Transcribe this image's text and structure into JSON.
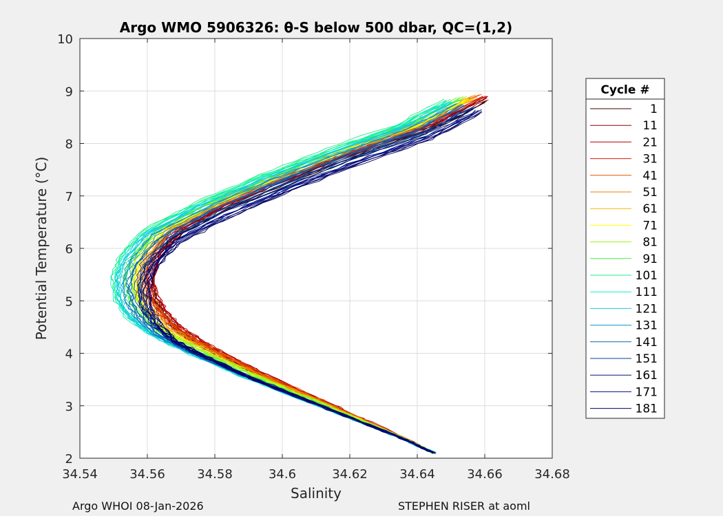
{
  "chart_data": {
    "type": "line",
    "title": "Argo WMO 5906326: θ-S below 500 dbar,  QC=(1,2)",
    "xlabel": "Salinity",
    "ylabel": "Potential Temperature (°C)",
    "xlim": [
      34.54,
      34.68
    ],
    "ylim": [
      2,
      10
    ],
    "xticks": [
      34.54,
      34.56,
      34.58,
      34.6,
      34.62,
      34.64,
      34.66,
      34.68
    ],
    "xtick_labels": [
      "34.54",
      "34.56",
      "34.58",
      "34.6",
      "34.62",
      "34.64",
      "34.66",
      "34.68"
    ],
    "yticks": [
      2,
      3,
      4,
      5,
      6,
      7,
      8,
      9,
      10
    ],
    "ytick_labels": [
      "2",
      "3",
      "4",
      "5",
      "6",
      "7",
      "8",
      "9",
      "10"
    ],
    "grid": true,
    "legend": {
      "title": "Cycle #",
      "position": "outside-right",
      "entries": [
        {
          "label": "1",
          "color": "#3a0000"
        },
        {
          "label": "11",
          "color": "#8b0000"
        },
        {
          "label": "21",
          "color": "#b40000"
        },
        {
          "label": "31",
          "color": "#d21e00"
        },
        {
          "label": "41",
          "color": "#e65000"
        },
        {
          "label": "51",
          "color": "#f08200"
        },
        {
          "label": "61",
          "color": "#f5b400"
        },
        {
          "label": "71",
          "color": "#ffff00"
        },
        {
          "label": "81",
          "color": "#a0f020"
        },
        {
          "label": "91",
          "color": "#46f03c"
        },
        {
          "label": "101",
          "color": "#14f08c"
        },
        {
          "label": "111",
          "color": "#14ecc8"
        },
        {
          "label": "121",
          "color": "#14c8e6"
        },
        {
          "label": "131",
          "color": "#0a96c8"
        },
        {
          "label": "141",
          "color": "#0a64b4"
        },
        {
          "label": "151",
          "color": "#0a3c96"
        },
        {
          "label": "161",
          "color": "#00196e"
        },
        {
          "label": "171",
          "color": "#000a82"
        },
        {
          "label": "181",
          "color": "#000064"
        }
      ]
    },
    "profile_shape": {
      "x": [
        34.645,
        34.635,
        34.62,
        34.605,
        34.59,
        34.58,
        34.572,
        34.565,
        34.56,
        34.557,
        34.556,
        34.558,
        34.565,
        34.58,
        34.6,
        34.62,
        34.64,
        34.655
      ],
      "y": [
        2.1,
        2.4,
        2.8,
        3.2,
        3.6,
        3.9,
        4.15,
        4.4,
        4.7,
        5.0,
        5.4,
        5.8,
        6.3,
        6.8,
        7.35,
        7.85,
        8.3,
        8.8
      ]
    },
    "series_offsets": [
      {
        "cycle": "1",
        "dx": 0.0045,
        "dy": 0.0
      },
      {
        "cycle": "11",
        "dx": 0.005,
        "dy": 0.05
      },
      {
        "cycle": "21",
        "dx": 0.0052,
        "dy": 0.1
      },
      {
        "cycle": "31",
        "dx": 0.004,
        "dy": 0.08
      },
      {
        "cycle": "41",
        "dx": 0.003,
        "dy": 0.12
      },
      {
        "cycle": "51",
        "dx": 0.002,
        "dy": 0.1
      },
      {
        "cycle": "61",
        "dx": 0.001,
        "dy": 0.06
      },
      {
        "cycle": "71",
        "dx": 0.0,
        "dy": 0.05
      },
      {
        "cycle": "81",
        "dx": -0.0015,
        "dy": 0.08
      },
      {
        "cycle": "91",
        "dx": -0.003,
        "dy": 0.06
      },
      {
        "cycle": "101",
        "dx": -0.0055,
        "dy": 0.04
      },
      {
        "cycle": "111",
        "dx": -0.006,
        "dy": 0.0
      },
      {
        "cycle": "121",
        "dx": -0.005,
        "dy": -0.02
      },
      {
        "cycle": "131",
        "dx": -0.003,
        "dy": -0.05
      },
      {
        "cycle": "141",
        "dx": -0.001,
        "dy": -0.08
      },
      {
        "cycle": "151",
        "dx": 0.0005,
        "dy": -0.1
      },
      {
        "cycle": "161",
        "dx": 0.002,
        "dy": -0.14
      },
      {
        "cycle": "171",
        "dx": 0.003,
        "dy": -0.18
      },
      {
        "cycle": "181",
        "dx": 0.004,
        "dy": -0.2
      }
    ]
  },
  "footer": {
    "left": "Argo WHOI 08-Jan-2026",
    "right": "STEPHEN RISER at aoml"
  }
}
